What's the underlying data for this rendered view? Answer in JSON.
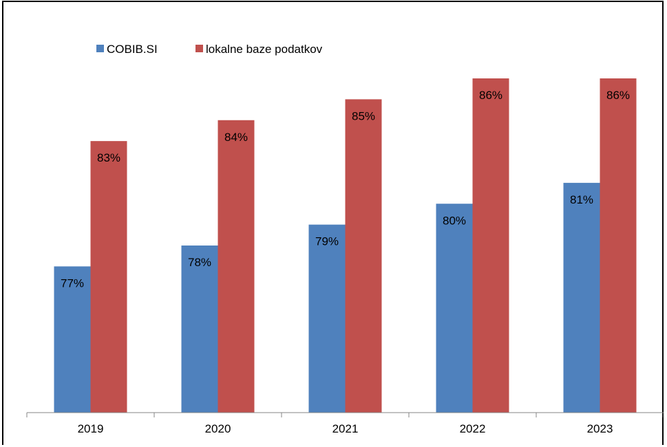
{
  "chart_data": {
    "type": "bar",
    "categories": [
      "2019",
      "2020",
      "2021",
      "2022",
      "2023"
    ],
    "series": [
      {
        "name": "COBIB.SI",
        "values": [
          77,
          78,
          79,
          80,
          81
        ],
        "color": "#4f81bd"
      },
      {
        "name": "lokalne baze podatkov",
        "values": [
          83,
          84,
          85,
          86,
          86
        ],
        "color": "#c0504d"
      }
    ],
    "data_labels": [
      [
        "77%",
        "78%",
        "79%",
        "80%",
        "81%"
      ],
      [
        "83%",
        "84%",
        "85%",
        "86%",
        "86%"
      ]
    ],
    "ylim": [
      70,
      86
    ],
    "grid": false,
    "legend": "top-left",
    "title": "",
    "xlabel": "",
    "ylabel": ""
  }
}
